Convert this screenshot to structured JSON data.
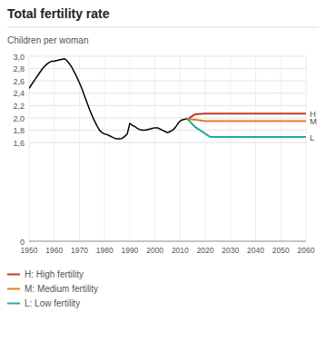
{
  "chart_data": {
    "type": "line",
    "title": "Total fertility rate",
    "y_label": "Children per woman",
    "xlim": [
      1950,
      2060
    ],
    "ylim": [
      0,
      3.0
    ],
    "xticks": [
      1950,
      1960,
      1970,
      1980,
      1990,
      2000,
      2010,
      2020,
      2030,
      2040,
      2050,
      2060
    ],
    "yticks": [
      0,
      {
        "value": 1.6,
        "label": "1,6"
      },
      {
        "value": 1.8,
        "label": "1,8"
      },
      {
        "value": 2.0,
        "label": "2,0"
      },
      {
        "value": 2.2,
        "label": "2,2"
      },
      {
        "value": 2.4,
        "label": "2,4"
      },
      {
        "value": 2.6,
        "label": "2,6"
      },
      {
        "value": 2.8,
        "label": "2,8"
      },
      {
        "value": 3.0,
        "label": "3,0"
      }
    ],
    "grid": true,
    "series": [
      {
        "color": "#000000",
        "x": [
          1950,
          1951,
          1952,
          1953,
          1954,
          1955,
          1956,
          1957,
          1958,
          1959,
          1960,
          1961,
          1962,
          1963,
          1964,
          1965,
          1966,
          1967,
          1968,
          1969,
          1970,
          1971,
          1972,
          1973,
          1974,
          1975,
          1976,
          1977,
          1978,
          1979,
          1980,
          1981,
          1982,
          1983,
          1984,
          1985,
          1986,
          1987,
          1988,
          1989,
          1990,
          1991,
          1992,
          1993,
          1994,
          1995,
          1996,
          1997,
          1998,
          1999,
          2000,
          2001,
          2002,
          2003,
          2004,
          2005,
          2006,
          2007,
          2008,
          2009,
          2010,
          2011,
          2012,
          2013
        ],
        "values": [
          2.48,
          2.54,
          2.6,
          2.66,
          2.72,
          2.78,
          2.83,
          2.87,
          2.9,
          2.92,
          2.92,
          2.93,
          2.94,
          2.95,
          2.96,
          2.93,
          2.88,
          2.82,
          2.74,
          2.66,
          2.57,
          2.47,
          2.36,
          2.25,
          2.14,
          2.04,
          1.95,
          1.87,
          1.8,
          1.76,
          1.74,
          1.73,
          1.71,
          1.69,
          1.67,
          1.66,
          1.66,
          1.67,
          1.7,
          1.74,
          1.91,
          1.88,
          1.86,
          1.83,
          1.81,
          1.8,
          1.8,
          1.81,
          1.82,
          1.83,
          1.84,
          1.84,
          1.82,
          1.8,
          1.78,
          1.76,
          1.78,
          1.8,
          1.84,
          1.9,
          1.95,
          1.97,
          1.98,
          1.98
        ]
      },
      {
        "name": "H: High fertility",
        "color": "#c0392b",
        "x": [
          2013,
          2016,
          2020,
          2060
        ],
        "values": [
          1.98,
          2.06,
          2.07,
          2.07
        ]
      },
      {
        "name": "M: Medium fertility",
        "color": "#e08020",
        "x": [
          2013,
          2016,
          2020,
          2060
        ],
        "values": [
          1.98,
          1.97,
          1.95,
          1.95
        ]
      },
      {
        "name": "L: Low fertility",
        "color": "#2aaa99",
        "x": [
          2013,
          2016,
          2022,
          2060
        ],
        "values": [
          1.98,
          1.85,
          1.69,
          1.69
        ]
      }
    ],
    "annotations": [
      {
        "text": "H",
        "y": 2.07
      },
      {
        "text": "M",
        "y": 1.95
      },
      {
        "text": "L",
        "y": 1.69
      }
    ]
  }
}
